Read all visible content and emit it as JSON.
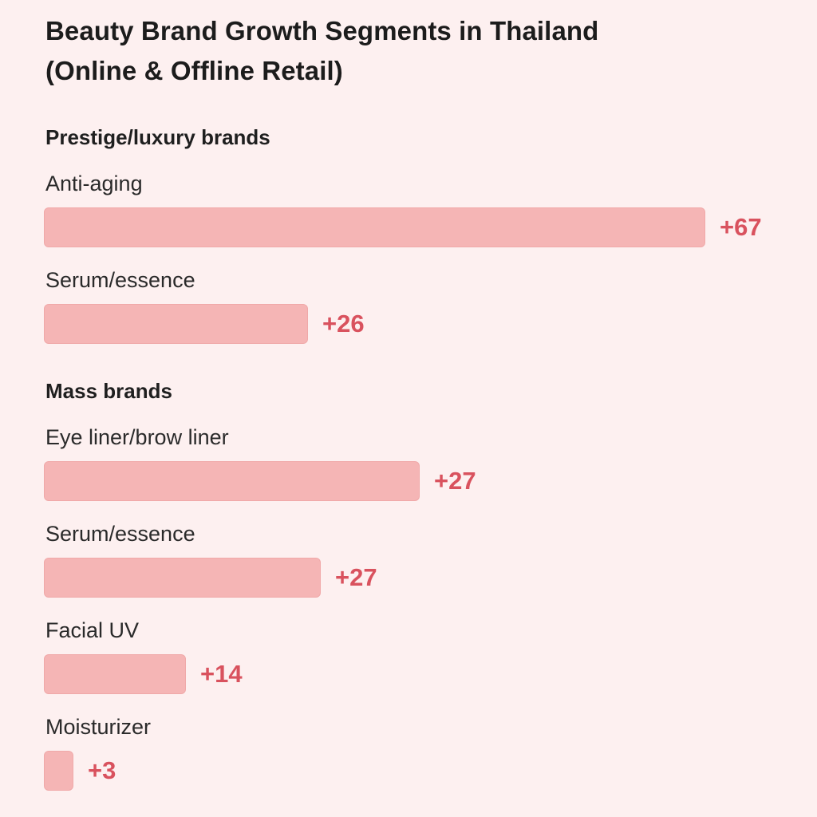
{
  "chart_data": {
    "type": "bar",
    "orientation": "horizontal",
    "title": "Beauty Brand Growth Segments in Thailand",
    "subtitle": "(Online & Offline Retail)",
    "value_prefix": "+",
    "xlim": [
      0,
      67
    ],
    "grid": false,
    "legend": "none",
    "bar_color": "#f5b5b5",
    "value_color": "#d9525e",
    "groups": [
      {
        "name": "Prestige/luxury brands",
        "categories": [
          "Anti-aging",
          "Serum/essence"
        ],
        "values": [
          67,
          26
        ],
        "value_labels": [
          "+67",
          "+26"
        ]
      },
      {
        "name": "Mass brands",
        "categories": [
          "Eye liner/brow liner",
          "Serum/essence",
          "Facial UV",
          "Moisturizer"
        ],
        "values": [
          27,
          27,
          14,
          3
        ],
        "value_labels": [
          "+27",
          "+27",
          "+14",
          "+3"
        ]
      }
    ]
  }
}
